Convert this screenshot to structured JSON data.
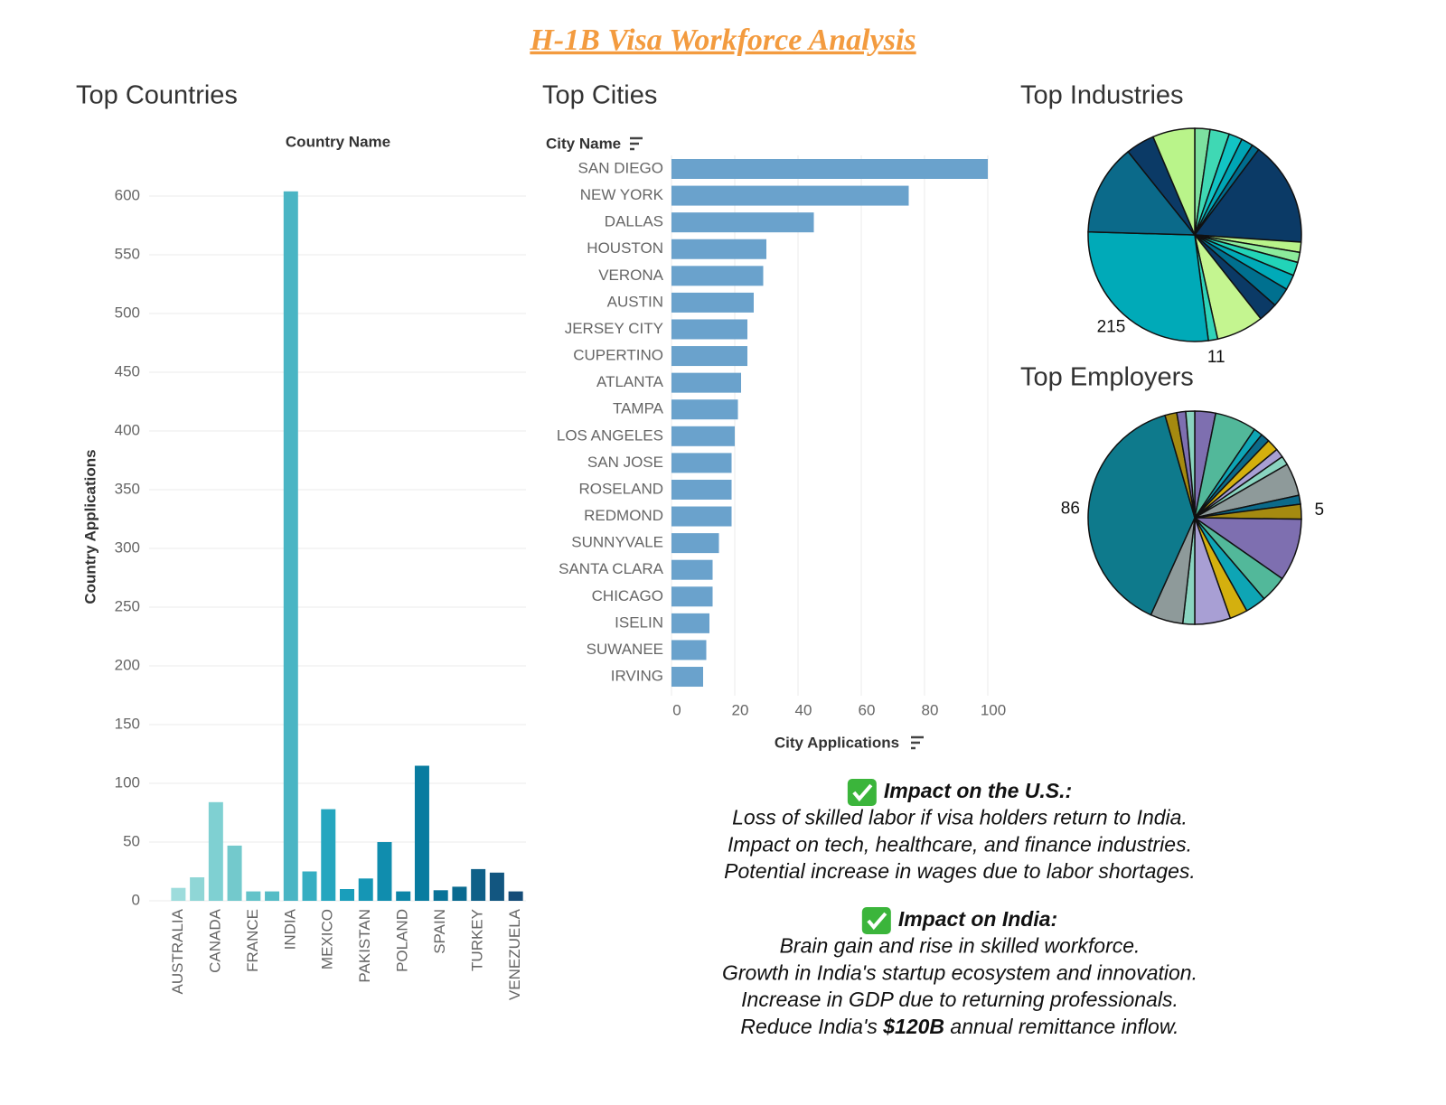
{
  "title": "H-1B Visa Workforce Analysis",
  "chart_data": [
    {
      "type": "bar",
      "title": "Top Countries",
      "x_header": "Country Name",
      "ylabel": "Country Applications",
      "categories": [
        "AUSTRALIA",
        null,
        "CANADA",
        null,
        "FRANCE",
        null,
        "INDIA",
        null,
        "MEXICO",
        null,
        "PAKISTAN",
        null,
        "POLAND",
        null,
        "SPAIN",
        null,
        "TURKEY",
        null,
        "VENEZUELA"
      ],
      "values": [
        11,
        20,
        84,
        47,
        8,
        8,
        604,
        25,
        78,
        10,
        19,
        50,
        8,
        115,
        9,
        12,
        27,
        24,
        8
      ],
      "colors": [
        "#9ddcdc",
        "#8fd6d6",
        "#7fd0d2",
        "#73c9cc",
        "#63c3c9",
        "#55bcc6",
        "#4ab5c4",
        "#35aec2",
        "#25a6bf",
        "#1a9ebb",
        "#1596b5",
        "#108dae",
        "#0b85a7",
        "#097ca0",
        "#087398",
        "#0a6a90",
        "#0f6088",
        "#125680",
        "#154c78"
      ],
      "ylim": [
        0,
        640
      ],
      "yticks": [
        0,
        50,
        100,
        150,
        200,
        250,
        300,
        350,
        400,
        450,
        500,
        550,
        600
      ],
      "grid": true
    },
    {
      "type": "hbar",
      "title": "Top Cities",
      "y_header": "City Name",
      "xlabel": "City Applications",
      "categories": [
        "SAN DIEGO",
        "NEW YORK",
        "DALLAS",
        "HOUSTON",
        "VERONA",
        "AUSTIN",
        "JERSEY CITY",
        "CUPERTINO",
        "ATLANTA",
        "TAMPA",
        "LOS ANGELES",
        "SAN JOSE",
        "ROSELAND",
        "REDMOND",
        "SUNNYVALE",
        "SANTA CLARA",
        "CHICAGO",
        "ISELIN",
        "SUWANEE",
        "IRVING"
      ],
      "values": [
        100,
        75,
        45,
        30,
        29,
        26,
        24,
        24,
        22,
        21,
        20,
        19,
        19,
        19,
        15,
        13,
        13,
        12,
        11,
        10
      ],
      "color": "#6aa2cc",
      "xlim": [
        0,
        104
      ],
      "xticks": [
        0,
        20,
        40,
        60,
        80,
        100
      ],
      "grid": true
    },
    {
      "type": "pie",
      "title": "Top Industries",
      "values": [
        18,
        23,
        16,
        14,
        9,
        124,
        12,
        12,
        16,
        18,
        23,
        23,
        56,
        11,
        215,
        108,
        34,
        50
      ],
      "value_labels": [
        null,
        null,
        null,
        null,
        null,
        null,
        null,
        null,
        null,
        null,
        null,
        null,
        null,
        "11",
        "215",
        null,
        null,
        null
      ],
      "colors": [
        "#7de0a0",
        "#3fd8b4",
        "#12c4c4",
        "#00a5b5",
        "#006d8f",
        "#0b3a66",
        "#b9f48a",
        "#8cec9c",
        "#22d4b8",
        "#00aab8",
        "#00708f",
        "#0b3a66",
        "#c4f590",
        "#2fd3b9",
        "#00aab8",
        "#0b6a8a",
        "#0b3a66",
        "#b9f48a"
      ]
    },
    {
      "type": "pie",
      "title": "Top Employers",
      "values": [
        7,
        14,
        3,
        3,
        4,
        3,
        3,
        11,
        3,
        5,
        21,
        9,
        7,
        6,
        12,
        4,
        11,
        86,
        4,
        3,
        3
      ],
      "value_labels": [
        null,
        null,
        null,
        null,
        null,
        null,
        null,
        null,
        null,
        "5",
        null,
        null,
        null,
        null,
        null,
        null,
        null,
        "86",
        null,
        null,
        null
      ],
      "colors": [
        "#7e6fb0",
        "#52b89a",
        "#0ea5b5",
        "#0b6a8a",
        "#d4b00e",
        "#a89fd4",
        "#8ad4c0",
        "#8e9a9a",
        "#0b6a8a",
        "#a58a10",
        "#7e6fb0",
        "#52b89a",
        "#0ea5b5",
        "#d4b00e",
        "#a89fd4",
        "#8ad4c0",
        "#8e9a9a",
        "#0e7a8c",
        "#a58a10",
        "#7e6fb0",
        "#8ad4c0"
      ]
    }
  ],
  "notes": [
    {
      "heading": "Impact on the U.S.:",
      "lines": [
        [
          "Loss of skilled labor if visa holders return to India."
        ],
        [
          "Impact on tech, healthcare, and finance industries."
        ],
        [
          "Potential increase in wages due to labor shortages."
        ]
      ]
    },
    {
      "heading": "Impact on India:",
      "lines": [
        [
          "Brain gain and rise in skilled workforce."
        ],
        [
          "Growth in India's startup ecosystem and innovation."
        ],
        [
          "Increase in GDP due to returning professionals."
        ],
        [
          "Reduce India's ",
          {
            "text": "$120B",
            "bold": true
          },
          " annual remittance inflow."
        ]
      ]
    }
  ]
}
